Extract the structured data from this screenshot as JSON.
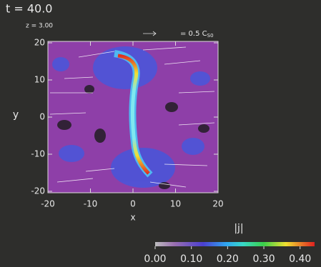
{
  "chart_data": {
    "type": "heatmap",
    "title": "t = 40.0",
    "subtitle": "z = 3.00",
    "annotation": "= 0.5 C",
    "annotation_subscript": "S0",
    "x_label": "x",
    "y_label": "y",
    "xlim": [
      -20,
      20
    ],
    "xticks": [
      -20,
      -10,
      0,
      10,
      20
    ],
    "ylim": [
      -20,
      20
    ],
    "yticks": [
      -20,
      -10,
      0,
      10,
      20
    ],
    "colorbar_label": "|j|",
    "clim": [
      0,
      0.44
    ],
    "cticks": [
      {
        "value": 0,
        "label": "0.00"
      },
      {
        "value": 0.1,
        "label": "0.10"
      },
      {
        "value": 0.2,
        "label": "0.20"
      },
      {
        "value": 0.3,
        "label": "0.30"
      },
      {
        "value": 0.4,
        "label": "0.40"
      }
    ]
  }
}
